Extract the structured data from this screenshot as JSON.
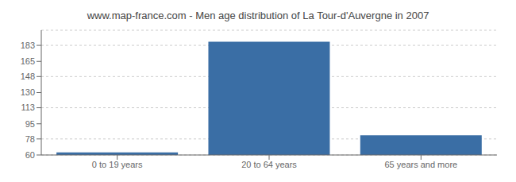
{
  "chart_data": {
    "type": "bar",
    "title": "www.map-france.com - Men age distribution of La Tour-d'Auvergne in 2007",
    "categories": [
      "0 to 19 years",
      "20 to 64 years",
      "65 years and more"
    ],
    "values": [
      63,
      187,
      82
    ],
    "color": "#3a6ea5",
    "ylim": [
      60,
      200
    ],
    "yticks": [
      60,
      78,
      95,
      113,
      130,
      148,
      165,
      183
    ],
    "grid": true
  }
}
